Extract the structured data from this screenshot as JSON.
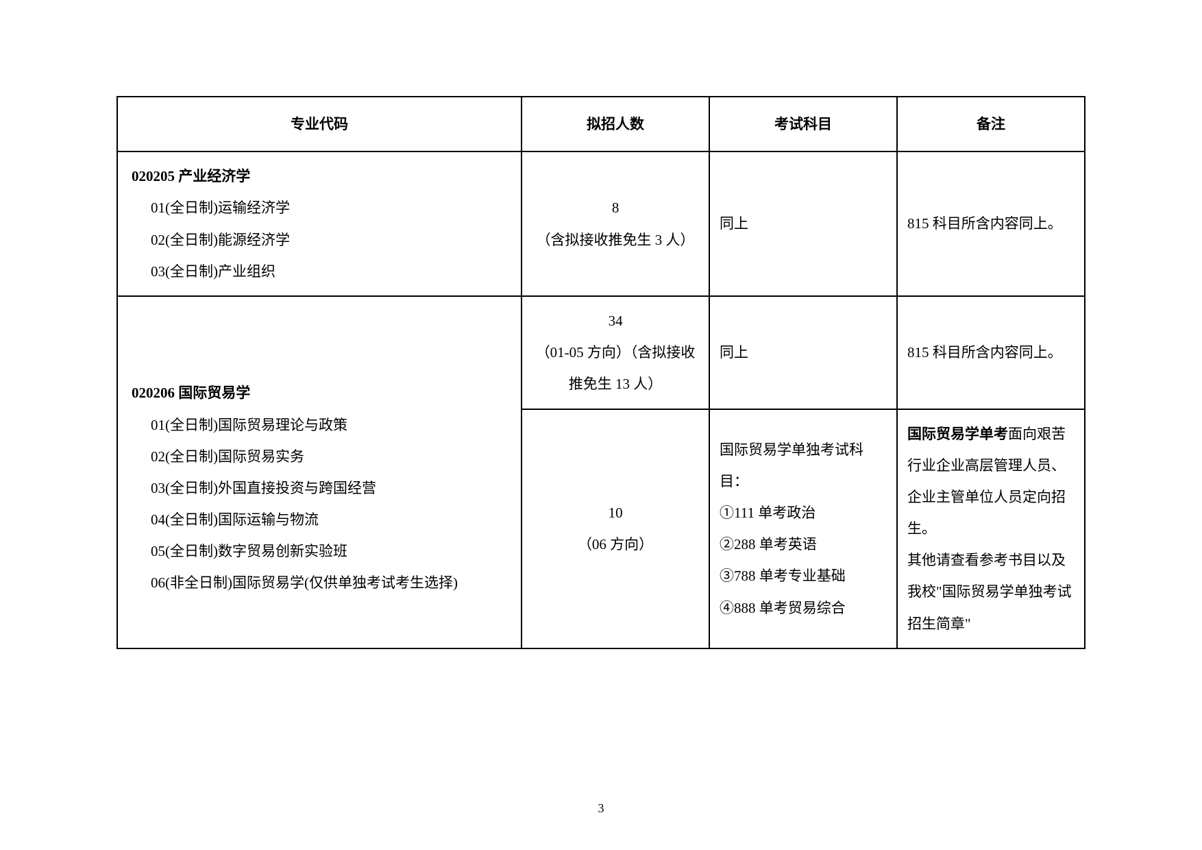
{
  "headers": {
    "col1": "专业代码",
    "col2": "拟招人数",
    "col3": "考试科目",
    "col4": "备注"
  },
  "row1": {
    "program_title": "020205 产业经济学",
    "items": {
      "i1": "01(全日制)运输经济学",
      "i2": "02(全日制)能源经济学",
      "i3": "03(全日制)产业组织"
    },
    "quota_num": "8",
    "quota_note": "（含拟接收推免生 3 人）",
    "subject": "同上",
    "note": "815 科目所含内容同上。"
  },
  "row2": {
    "program_title": "020206 国际贸易学",
    "items": {
      "i1": "01(全日制)国际贸易理论与政策",
      "i2": "02(全日制)国际贸易实务",
      "i3": "03(全日制)外国直接投资与跨国经营",
      "i4": "04(全日制)国际运输与物流",
      "i5": "05(全日制)数字贸易创新实验班",
      "i6": "06(非全日制)国际贸易学(仅供单独考试考生选择)"
    },
    "quota1_num": "34",
    "quota1_note": "（01-05 方向）（含拟接收推免生 13 人）",
    "subject1": "同上",
    "note1": "815 科目所含内容同上。",
    "quota2_num": "10",
    "quota2_note": "（06 方向）",
    "subject2_title": "国际贸易学单独考试科目：",
    "subject2_items": {
      "s1": "①111 单考政治",
      "s2": "②288 单考英语",
      "s3": "③788 单考专业基础",
      "s4": "④888 单考贸易综合"
    },
    "note2_bold": "国际贸易学单考",
    "note2_rest": "面向艰苦行业企业高层管理人员、企业主管单位人员定向招生。",
    "note2_p2": "其他请查看参考书目以及我校\"国际贸易学单独考试招生简章\""
  },
  "page_number": "3"
}
